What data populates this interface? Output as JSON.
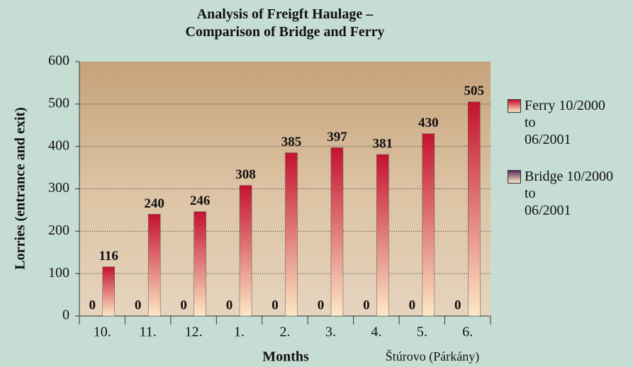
{
  "chart_data": {
    "type": "bar",
    "title": "Analysis of Freigft Haulage –\nComparison of Bridge and Ferry",
    "x_label": "Months",
    "y_label": "Lorries (entrance and exit)",
    "annotation": "Štúrovo (Párkány)",
    "categories": [
      "10.",
      "11.",
      "12.",
      "1.",
      "2.",
      "3.",
      "4.",
      "5.",
      "6."
    ],
    "series": [
      {
        "name": "Bridge 10/2000\nto\n06/2001",
        "color": "#5e2d5e",
        "values": [
          0,
          0,
          0,
          0,
          0,
          0,
          0,
          0,
          0
        ]
      },
      {
        "name": "Ferry 10/2000\nto\n06/2001",
        "color": "#c4122f",
        "values": [
          116,
          240,
          246,
          308,
          385,
          397,
          381,
          430,
          505
        ]
      }
    ],
    "ylim": [
      0,
      600
    ],
    "yticks": [
      0,
      100,
      200,
      300,
      400,
      500,
      600
    ],
    "grid": true,
    "legend": "right"
  }
}
